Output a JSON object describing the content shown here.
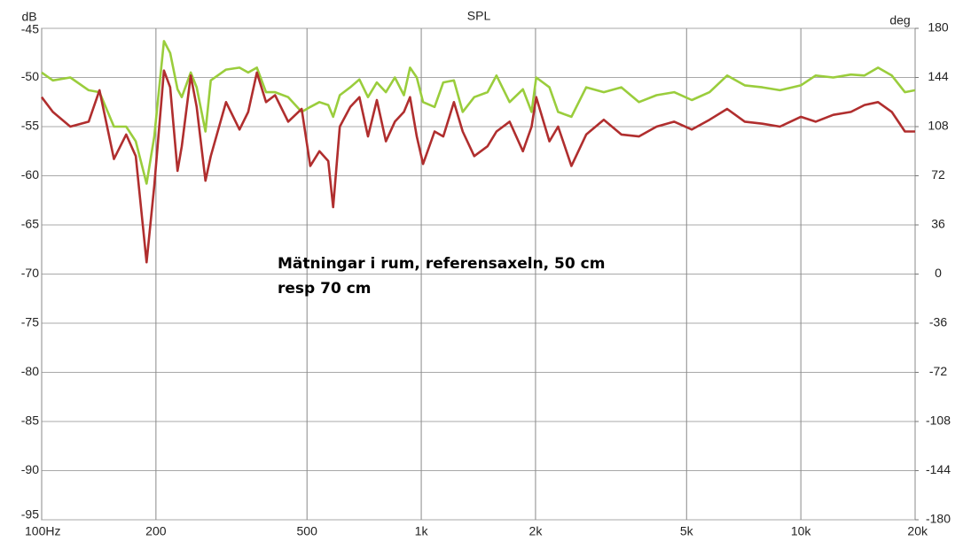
{
  "chart_data": {
    "type": "line",
    "title": "SPL",
    "y_label": "dB",
    "y2_label": "deg",
    "annotations": [
      "Mätningar i rum, referensaxeln, 50 cm",
      "resp 70 cm"
    ],
    "x_scale": "log",
    "grid": true,
    "xlim": [
      100,
      20000
    ],
    "xticks": [
      {
        "value": 100,
        "label": "100Hz"
      },
      200,
      500,
      {
        "value": 1000,
        "label": "1k"
      },
      {
        "value": 2000,
        "label": "2k"
      },
      {
        "value": 5000,
        "label": "5k"
      },
      {
        "value": 10000,
        "label": "10k"
      },
      {
        "value": 20000,
        "label": "20k"
      }
    ],
    "ylim": [
      -95,
      -45
    ],
    "yticks": [
      -45,
      -50,
      -55,
      -60,
      -65,
      -70,
      -75,
      -80,
      -85,
      -90,
      -95
    ],
    "y2lim": [
      -180,
      180
    ],
    "y2ticks": [
      180,
      144,
      108,
      72,
      36,
      0,
      -36,
      -72,
      -108,
      -144,
      -180
    ],
    "x": [
      100,
      107,
      119,
      133,
      142,
      155,
      167,
      177,
      189,
      198,
      210,
      218,
      228,
      234,
      247,
      256,
      270,
      279,
      306,
      332,
      350,
      369,
      390,
      412,
      446,
      484,
      510,
      539,
      569,
      586,
      610,
      650,
      687,
      724,
      764,
      807,
      852,
      900,
      934,
      973,
      1011,
      1084,
      1143,
      1219,
      1286,
      1379,
      1495,
      1578,
      1709,
      1853,
      1953,
      2008,
      2176,
      2294,
      2486,
      2720,
      3025,
      3366,
      3745,
      4168,
      4639,
      5163,
      5747,
      6394,
      7116,
      7918,
      8811,
      10000,
      10940,
      12172,
      13546,
      14714,
      15974,
      17359,
      18800,
      20000
    ],
    "series": [
      {
        "color": "#9acd3c",
        "values": [
          -49.5,
          -50.3,
          -50,
          -51.3,
          -51.5,
          -55,
          -55,
          -56.5,
          -60.8,
          -56,
          -46.3,
          -47.5,
          -51.2,
          -52,
          -49.5,
          -51,
          -55.5,
          -50.3,
          -49.2,
          -49,
          -49.5,
          -49,
          -51.5,
          -51.5,
          -52,
          -53.5,
          -53,
          -52.5,
          -52.8,
          -54,
          -51.8,
          -51,
          -50.2,
          -52,
          -50.5,
          -51.5,
          -50,
          -51.8,
          -49,
          -50,
          -52.5,
          -53,
          -50.5,
          -50.3,
          -53.5,
          -52,
          -51.5,
          -49.8,
          -52.5,
          -51.2,
          -53.5,
          -50,
          -51,
          -53.5,
          -54,
          -51,
          -51.5,
          -51,
          -52.5,
          -51.8,
          -51.5,
          -52.3,
          -51.5,
          -49.8,
          -50.8,
          -51,
          -51.3,
          -50.8,
          -49.8,
          -50,
          -49.7,
          -49.8,
          -49,
          -49.8,
          -51.5,
          -51.3
        ]
      },
      {
        "color": "#b02e2e",
        "values": [
          -52,
          -53.5,
          -55,
          -54.5,
          -51.3,
          -58.3,
          -55.8,
          -58,
          -68.8,
          -61,
          -49.3,
          -51,
          -59.5,
          -57,
          -49.8,
          -53,
          -60.5,
          -58,
          -52.5,
          -55.3,
          -53.5,
          -49.5,
          -52.5,
          -51.8,
          -54.5,
          -53.2,
          -59,
          -57.5,
          -58.5,
          -63.2,
          -55,
          -53,
          -52,
          -56,
          -52.3,
          -56.5,
          -54.5,
          -53.5,
          -52,
          -56,
          -58.8,
          -55.5,
          -56,
          -52.5,
          -55.5,
          -58,
          -57,
          -55.5,
          -54.5,
          -57.5,
          -55,
          -52,
          -56.5,
          -55,
          -59,
          -55.8,
          -54.3,
          -55.8,
          -56,
          -55,
          -54.5,
          -55.3,
          -54.3,
          -53.2,
          -54.5,
          -54.7,
          -55,
          -54,
          -54.5,
          -53.8,
          -53.5,
          -52.8,
          -52.5,
          -53.5,
          -55.5,
          -55.5
        ]
      }
    ]
  }
}
